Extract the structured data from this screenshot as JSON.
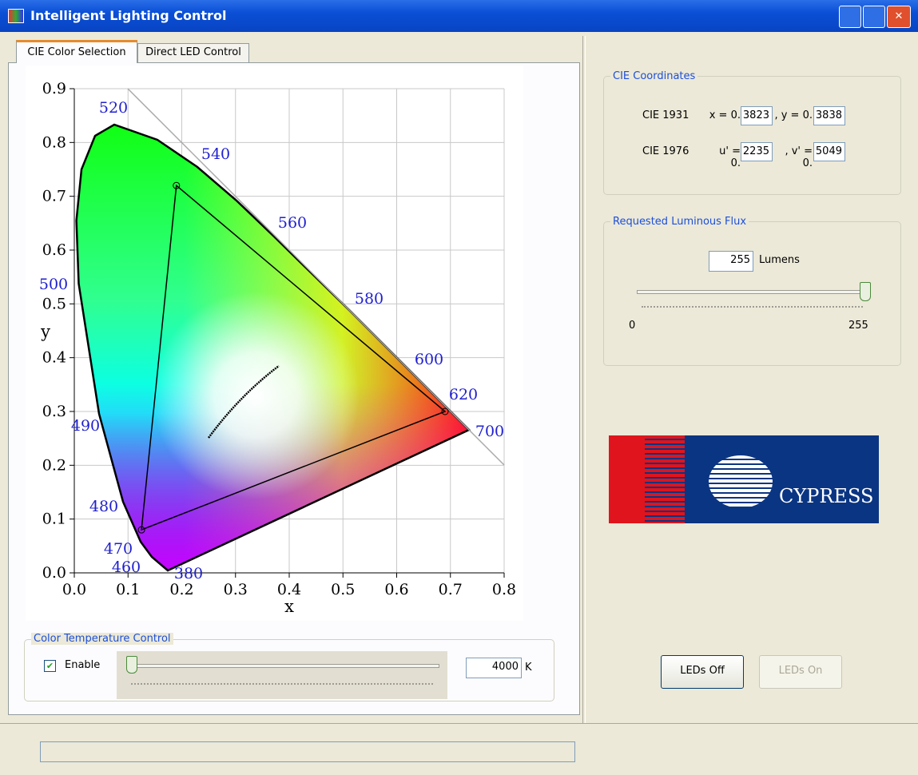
{
  "window": {
    "title": "Intelligent Lighting Control"
  },
  "tabs": [
    "CIE Color Selection",
    "Direct LED Control"
  ],
  "chart_data": {
    "type": "scatter",
    "x_label": "x",
    "y_label": "y",
    "xlim": [
      0,
      0.8
    ],
    "ylim": [
      0,
      0.9
    ],
    "xticks": [
      {
        "value": 0,
        "label": "0.0"
      },
      0.1,
      0.2,
      0.3,
      0.4,
      0.5,
      0.6,
      0.7,
      0.8
    ],
    "yticks": [
      {
        "value": 0,
        "label": "0.0"
      },
      0.1,
      0.2,
      0.3,
      0.4,
      0.5,
      0.6,
      0.7,
      0.8,
      0.9
    ],
    "grid": true,
    "wavelength_labels": [
      "520",
      "540",
      "560",
      "580",
      "600",
      "620",
      "700",
      "500",
      "490",
      "480",
      "470",
      "460",
      "380"
    ],
    "x": [
      0.19,
      0.69,
      0.125
    ],
    "values": [
      0.72,
      0.3,
      0.08
    ]
  },
  "color_temperature": {
    "title": "Color Temperature Control",
    "checkbox": "Enable",
    "value": "4000",
    "unit": "K"
  },
  "cie_coordinates": {
    "title": "CIE Coordinates",
    "rows": [
      {
        "label": "CIE 1931",
        "a_label": "x = 0.",
        "a": "3823",
        "b_label": ", y = 0.",
        "b": "3838"
      },
      {
        "label": "CIE 1976",
        "a_label": "u' = 0.",
        "a": "2235",
        "b_label": ", v' = 0.",
        "b": "5049"
      }
    ]
  },
  "luminous_flux": {
    "title": "Requested Luminous Flux",
    "value": 255,
    "unit": "Lumens",
    "min": 0,
    "max": 255
  },
  "logo": "CYPRESS",
  "buttons": [
    "LEDs Off",
    "LEDs On"
  ]
}
